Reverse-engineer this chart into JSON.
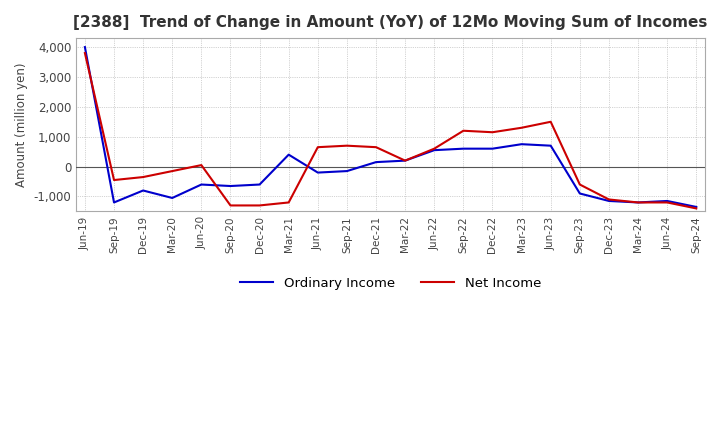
{
  "title": "[2388]  Trend of Change in Amount (YoY) of 12Mo Moving Sum of Incomes",
  "ylabel": "Amount (million yen)",
  "ylim": [
    -1500,
    4300
  ],
  "yticks": [
    -1000,
    0,
    1000,
    2000,
    3000,
    4000
  ],
  "x_labels": [
    "Jun-19",
    "Sep-19",
    "Dec-19",
    "Mar-20",
    "Jun-20",
    "Sep-20",
    "Dec-20",
    "Mar-21",
    "Jun-21",
    "Sep-21",
    "Dec-21",
    "Mar-22",
    "Jun-22",
    "Sep-22",
    "Dec-22",
    "Mar-23",
    "Jun-23",
    "Sep-23",
    "Dec-23",
    "Mar-24",
    "Jun-24",
    "Sep-24"
  ],
  "ordinary_income": [
    4000,
    -1200,
    -800,
    -1050,
    -600,
    -650,
    -600,
    400,
    -200,
    -150,
    150,
    200,
    550,
    600,
    600,
    750,
    700,
    -900,
    -1150,
    -1200,
    -1150,
    -1350
  ],
  "net_income": [
    3800,
    -450,
    -350,
    -150,
    50,
    -1300,
    -1300,
    -1200,
    650,
    700,
    650,
    200,
    600,
    1200,
    1150,
    1300,
    1500,
    -600,
    -1100,
    -1200,
    -1200,
    -1400
  ],
  "ordinary_income_color": "#0000cc",
  "net_income_color": "#cc0000",
  "background_color": "#ffffff",
  "plot_bg_color": "#ffffff",
  "grid_color": "#aaaaaa",
  "title_fontsize": 11,
  "legend_labels": [
    "Ordinary Income",
    "Net Income"
  ]
}
